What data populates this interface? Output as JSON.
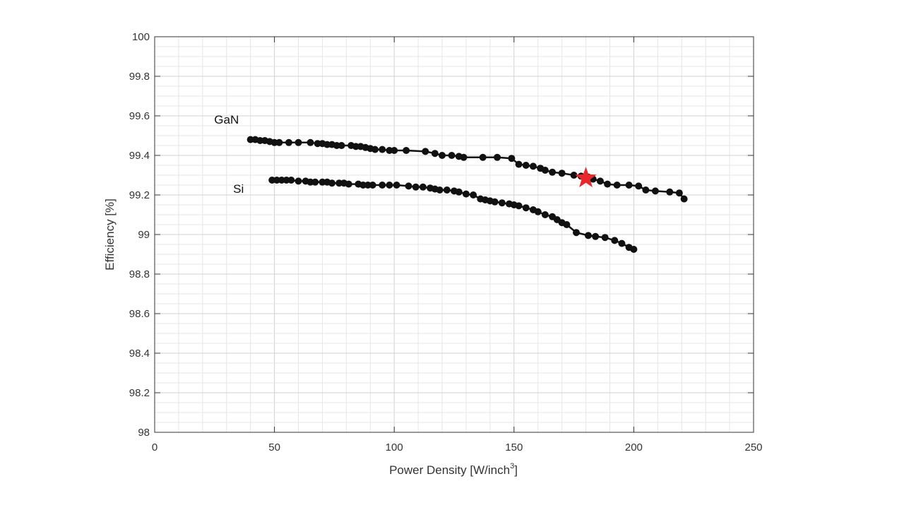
{
  "chart_data": {
    "type": "scatter",
    "title": "",
    "xlabel": "Power Density [W/inch",
    "xlabel_sup": "3",
    "xlabel_tail": "]",
    "ylabel": "Efficiency [%]",
    "xlim": [
      0,
      250
    ],
    "ylim": [
      98,
      100
    ],
    "xticks": [
      0,
      50,
      100,
      150,
      200,
      250
    ],
    "yticks": [
      98,
      98.2,
      98.4,
      98.6,
      98.8,
      99,
      99.2,
      99.4,
      99.6,
      99.8,
      100
    ],
    "xtick_labels": [
      "0",
      "50",
      "100",
      "150",
      "200",
      "250"
    ],
    "ytick_labels": [
      "98",
      "98.2",
      "98.4",
      "98.6",
      "98.8",
      "99",
      "99.2",
      "99.4",
      "99.6",
      "99.8",
      "100"
    ],
    "grid": true,
    "minor_grid": true,
    "legend": "none",
    "series": [
      {
        "name": "GaN",
        "label_at": [
          30,
          99.56
        ],
        "color": "#111111",
        "x": [
          40,
          42,
          44,
          46,
          48,
          50,
          52,
          56,
          60,
          65,
          68,
          70,
          72,
          74,
          76,
          78,
          82,
          84,
          86,
          88,
          90,
          92,
          95,
          98,
          100,
          105,
          113,
          117,
          120,
          124,
          127,
          129,
          137,
          143,
          149,
          152,
          155,
          158,
          161,
          163,
          166,
          170,
          175,
          178,
          181,
          183,
          186,
          189,
          193,
          198,
          202,
          205,
          209,
          215,
          219,
          221
        ],
        "y": [
          99.48,
          99.48,
          99.475,
          99.475,
          99.47,
          99.465,
          99.465,
          99.465,
          99.465,
          99.465,
          99.46,
          99.46,
          99.455,
          99.455,
          99.45,
          99.45,
          99.45,
          99.445,
          99.445,
          99.44,
          99.435,
          99.43,
          99.43,
          99.425,
          99.425,
          99.425,
          99.42,
          99.41,
          99.4,
          99.4,
          99.395,
          99.39,
          99.39,
          99.39,
          99.385,
          99.355,
          99.35,
          99.345,
          99.335,
          99.325,
          99.315,
          99.31,
          99.3,
          99.295,
          99.29,
          99.28,
          99.27,
          99.255,
          99.25,
          99.25,
          99.245,
          99.225,
          99.22,
          99.215,
          99.21,
          99.18
        ]
      },
      {
        "name": "Si",
        "label_at": [
          35,
          99.21
        ],
        "color": "#111111",
        "x": [
          49,
          51,
          53,
          55,
          57,
          60,
          63,
          65,
          67,
          70,
          72,
          74,
          77,
          79,
          81,
          85,
          87,
          89,
          91,
          95,
          98,
          101,
          106,
          109,
          112,
          115,
          117,
          119,
          122,
          125,
          127,
          130,
          133,
          136,
          138,
          140,
          142,
          145,
          148,
          150,
          152,
          155,
          158,
          160,
          163,
          166,
          168,
          170,
          172,
          176,
          181,
          184,
          188,
          192,
          195,
          198,
          200
        ],
        "y": [
          99.275,
          99.275,
          99.275,
          99.275,
          99.275,
          99.27,
          99.27,
          99.265,
          99.265,
          99.265,
          99.265,
          99.26,
          99.26,
          99.26,
          99.255,
          99.255,
          99.25,
          99.25,
          99.25,
          99.25,
          99.25,
          99.25,
          99.245,
          99.24,
          99.24,
          99.235,
          99.23,
          99.225,
          99.225,
          99.22,
          99.215,
          99.205,
          99.2,
          99.18,
          99.175,
          99.17,
          99.165,
          99.16,
          99.155,
          99.15,
          99.145,
          99.135,
          99.125,
          99.115,
          99.1,
          99.09,
          99.075,
          99.06,
          99.05,
          99.01,
          98.995,
          98.99,
          98.985,
          98.97,
          98.955,
          98.935,
          98.925
        ]
      }
    ],
    "marker": {
      "shape": "star",
      "x": 180,
      "y": 99.285,
      "color": "#e8262c"
    }
  }
}
